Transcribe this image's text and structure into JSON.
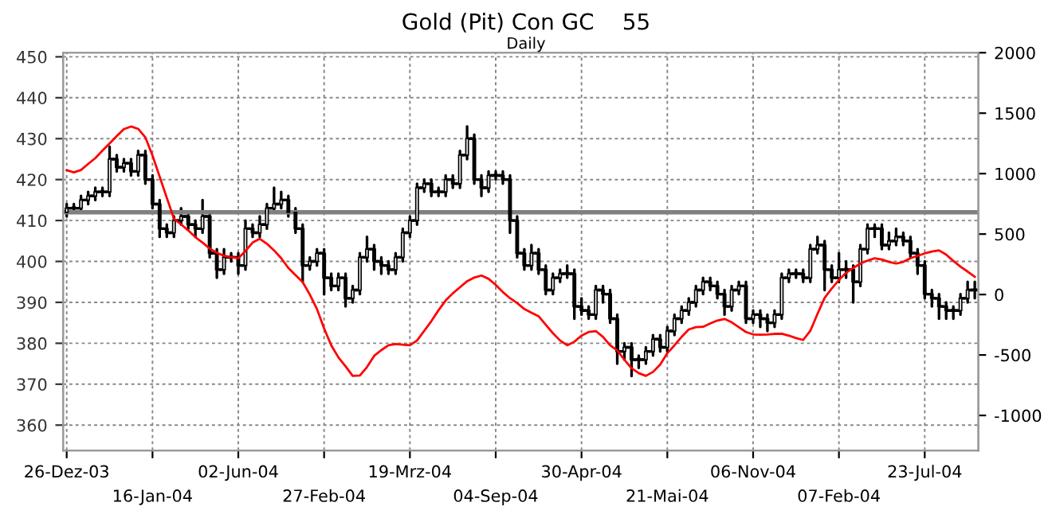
{
  "chart_data": {
    "type": "candlestick",
    "title": "Gold (Pit) Con GC    55",
    "subtitle": "Daily",
    "categories": [
      "26-Dez-03",
      null,
      null,
      null,
      null,
      null,
      null,
      null,
      null,
      null,
      null,
      null,
      "16-Jan-04",
      null,
      null,
      null,
      null,
      null,
      null,
      null,
      null,
      null,
      null,
      null,
      "02-Jun-04",
      null,
      null,
      null,
      null,
      null,
      null,
      null,
      null,
      null,
      null,
      null,
      "27-Feb-04",
      null,
      null,
      null,
      null,
      null,
      null,
      null,
      null,
      null,
      null,
      null,
      "19-Mrz-04",
      null,
      null,
      null,
      null,
      null,
      null,
      null,
      null,
      null,
      null,
      null,
      "04-Sep-04",
      null,
      null,
      null,
      null,
      null,
      null,
      null,
      null,
      null,
      null,
      null,
      "30-Apr-04",
      null,
      null,
      null,
      null,
      null,
      null,
      null,
      null,
      null,
      null,
      null,
      "21-Mai-04",
      null,
      null,
      null,
      null,
      null,
      null,
      null,
      null,
      null,
      null,
      null,
      "06-Nov-04",
      null,
      null,
      null,
      null,
      null,
      null,
      null,
      null,
      null,
      null,
      null,
      "07-Feb-04",
      null,
      null,
      null,
      null,
      null,
      null,
      null,
      null,
      null,
      null,
      null,
      "23-Jul-04",
      null,
      null,
      null,
      null,
      null,
      null,
      null
    ],
    "color": "#000000",
    "ohlc": [
      [
        412,
        414,
        411,
        413
      ],
      [
        413,
        414,
        412,
        413
      ],
      [
        413,
        416,
        412,
        415
      ],
      [
        415,
        417,
        414,
        416
      ],
      [
        416,
        418,
        415,
        417
      ],
      [
        417,
        418,
        416,
        417
      ],
      [
        417,
        428,
        416,
        425
      ],
      [
        425,
        426,
        422,
        423
      ],
      [
        423,
        425,
        422,
        424
      ],
      [
        424,
        425,
        421,
        422
      ],
      [
        422,
        427,
        421,
        426
      ],
      [
        426,
        427,
        419,
        420
      ],
      [
        420,
        421,
        413,
        414
      ],
      [
        414,
        415,
        406,
        408
      ],
      [
        408,
        409,
        406,
        407
      ],
      [
        407,
        411,
        406,
        410
      ],
      [
        410,
        413,
        409,
        411
      ],
      [
        411,
        412,
        408,
        409
      ],
      [
        409,
        410,
        406,
        408
      ],
      [
        408,
        415,
        407,
        411
      ],
      [
        411,
        412,
        401,
        402
      ],
      [
        402,
        403,
        396,
        398
      ],
      [
        398,
        403,
        397,
        401
      ],
      [
        401,
        402,
        400,
        401
      ],
      [
        401,
        402,
        397,
        399
      ],
      [
        399,
        410,
        398,
        408
      ],
      [
        408,
        409,
        406,
        407
      ],
      [
        407,
        411,
        406,
        409
      ],
      [
        409,
        414,
        408,
        413
      ],
      [
        413,
        418,
        412,
        414
      ],
      [
        414,
        417,
        413,
        415
      ],
      [
        415,
        416,
        411,
        412
      ],
      [
        412,
        413,
        407,
        408
      ],
      [
        408,
        409,
        395,
        399
      ],
      [
        399,
        401,
        398,
        400
      ],
      [
        400,
        403,
        399,
        402
      ],
      [
        402,
        403,
        392,
        396
      ],
      [
        396,
        397,
        393,
        394
      ],
      [
        394,
        397,
        393,
        396
      ],
      [
        396,
        397,
        389,
        391
      ],
      [
        391,
        394,
        390,
        393
      ],
      [
        393,
        402,
        392,
        401
      ],
      [
        401,
        406,
        400,
        403
      ],
      [
        403,
        404,
        398,
        400
      ],
      [
        400,
        401,
        397,
        399
      ],
      [
        399,
        400,
        397,
        398
      ],
      [
        398,
        402,
        397,
        401
      ],
      [
        401,
        408,
        400,
        407
      ],
      [
        407,
        411,
        406,
        410
      ],
      [
        410,
        419,
        409,
        418
      ],
      [
        418,
        420,
        417,
        419
      ],
      [
        419,
        420,
        416,
        417
      ],
      [
        417,
        418,
        416,
        417
      ],
      [
        417,
        421,
        416,
        420
      ],
      [
        420,
        421,
        418,
        419
      ],
      [
        419,
        427,
        418,
        426
      ],
      [
        426,
        433,
        425,
        430
      ],
      [
        430,
        431,
        419,
        420
      ],
      [
        420,
        421,
        416,
        418
      ],
      [
        418,
        422,
        417,
        421
      ],
      [
        421,
        422,
        420,
        421
      ],
      [
        421,
        422,
        419,
        420
      ],
      [
        420,
        421,
        407,
        410
      ],
      [
        410,
        411,
        401,
        402
      ],
      [
        402,
        403,
        398,
        399
      ],
      [
        399,
        404,
        398,
        402
      ],
      [
        402,
        403,
        397,
        398
      ],
      [
        398,
        399,
        392,
        393
      ],
      [
        393,
        397,
        392,
        396
      ],
      [
        396,
        398,
        395,
        397
      ],
      [
        397,
        399,
        396,
        397
      ],
      [
        397,
        398,
        386,
        389
      ],
      [
        389,
        391,
        387,
        388
      ],
      [
        388,
        389,
        386,
        387
      ],
      [
        387,
        394,
        386,
        393
      ],
      [
        393,
        394,
        390,
        392
      ],
      [
        392,
        393,
        385,
        386
      ],
      [
        386,
        387,
        375,
        378
      ],
      [
        378,
        380,
        376,
        379
      ],
      [
        379,
        380,
        372,
        376
      ],
      [
        376,
        377,
        374,
        376
      ],
      [
        376,
        379,
        375,
        378
      ],
      [
        378,
        382,
        377,
        381
      ],
      [
        381,
        382,
        378,
        379
      ],
      [
        379,
        384,
        378,
        383
      ],
      [
        383,
        387,
        382,
        386
      ],
      [
        386,
        389,
        385,
        388
      ],
      [
        388,
        391,
        387,
        390
      ],
      [
        390,
        394,
        389,
        393
      ],
      [
        393,
        396,
        392,
        395
      ],
      [
        395,
        396,
        393,
        394
      ],
      [
        394,
        395,
        391,
        392
      ],
      [
        392,
        393,
        387,
        389
      ],
      [
        389,
        394,
        388,
        393
      ],
      [
        393,
        395,
        392,
        394
      ],
      [
        394,
        395,
        385,
        386
      ],
      [
        386,
        388,
        385,
        387
      ],
      [
        387,
        388,
        384,
        386
      ],
      [
        386,
        387,
        383,
        385
      ],
      [
        385,
        388,
        384,
        387
      ],
      [
        387,
        397,
        386,
        396
      ],
      [
        396,
        398,
        395,
        397
      ],
      [
        397,
        398,
        396,
        397
      ],
      [
        397,
        398,
        395,
        396
      ],
      [
        396,
        404,
        395,
        403
      ],
      [
        403,
        406,
        402,
        404
      ],
      [
        404,
        405,
        393,
        398
      ],
      [
        398,
        399,
        395,
        396
      ],
      [
        396,
        402,
        395,
        398
      ],
      [
        398,
        400,
        396,
        398
      ],
      [
        398,
        399,
        390,
        395
      ],
      [
        395,
        404,
        394,
        403
      ],
      [
        403,
        409,
        402,
        408
      ],
      [
        408,
        409,
        406,
        408
      ],
      [
        408,
        409,
        403,
        404
      ],
      [
        404,
        407,
        403,
        405
      ],
      [
        405,
        408,
        404,
        406
      ],
      [
        406,
        407,
        404,
        405
      ],
      [
        405,
        406,
        401,
        402
      ],
      [
        402,
        403,
        397,
        399
      ],
      [
        399,
        400,
        391,
        392
      ],
      [
        392,
        393,
        389,
        391
      ],
      [
        391,
        392,
        386,
        389
      ],
      [
        389,
        390,
        386,
        388
      ],
      [
        388,
        389,
        386,
        388
      ],
      [
        388,
        392,
        387,
        391
      ],
      [
        391,
        395,
        390,
        393
      ],
      [
        393,
        395,
        391,
        393
      ]
    ],
    "series": [
      {
        "type": "line",
        "axis": "y2",
        "color": "#ff0000",
        "values": [
          1028,
          1010,
          1030,
          1080,
          1128,
          1190,
          1250,
          1310,
          1368,
          1390,
          1370,
          1300,
          1150,
          975,
          800,
          627,
          580,
          530,
          474,
          430,
          380,
          345,
          321,
          310,
          300,
          360,
          430,
          461,
          420,
          365,
          300,
          220,
          160,
          103,
          0,
          -120,
          -280,
          -420,
          -520,
          -594,
          -673,
          -670,
          -600,
          -507,
          -460,
          -420,
          -410,
          -415,
          -420,
          -380,
          -300,
          -220,
          -130,
          -49,
          10,
          60,
          110,
          140,
          157,
          130,
          80,
          20,
          -30,
          -71,
          -120,
          -150,
          -180,
          -250,
          -320,
          -380,
          -420,
          -390,
          -340,
          -310,
          -302,
          -350,
          -420,
          -463,
          -540,
          -610,
          -650,
          -673,
          -640,
          -580,
          -485,
          -420,
          -350,
          -289,
          -270,
          -267,
          -240,
          -215,
          -202,
          -230,
          -270,
          -310,
          -330,
          -333,
          -330,
          -325,
          -324,
          -340,
          -360,
          -376,
          -300,
          -160,
          -28,
          50,
          120,
          180,
          220,
          256,
          280,
          300,
          290,
          270,
          256,
          270,
          300,
          320,
          340,
          355,
          365,
          330,
          278,
          230,
          190,
          147
        ]
      }
    ],
    "ylim": [
      353.8,
      451
    ],
    "yticks": [
      360,
      370,
      380,
      390,
      400,
      410,
      420,
      430,
      440,
      450
    ],
    "y2lim": [
      -1290,
      2000
    ],
    "y2ticks": [
      -1000,
      -500,
      0,
      500,
      1000,
      1500,
      2000
    ],
    "ref_lines": [
      {
        "axis": "y",
        "value": 412,
        "color": "#808080"
      }
    ],
    "grid": true,
    "legend": false
  }
}
